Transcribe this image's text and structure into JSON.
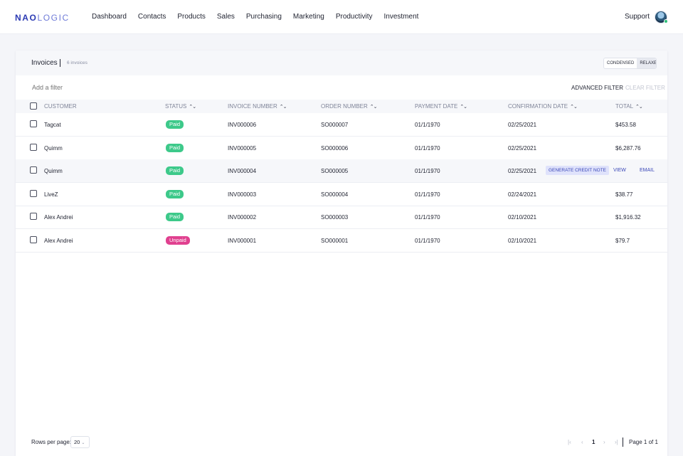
{
  "nav": {
    "logo_part1": "NAO",
    "logo_part2": "LOGIC",
    "items": [
      "Dashboard",
      "Contacts",
      "Products",
      "Sales",
      "Purchasing",
      "Marketing",
      "Productivity",
      "Investment"
    ],
    "support": "Support"
  },
  "card": {
    "title": "Invoices",
    "count": "6 invoices",
    "density": {
      "condensed": "CONDENSED",
      "relaxed": "RELAXED",
      "active": "relaxed"
    }
  },
  "filter": {
    "placeholder": "Add a filter",
    "advanced": "ADVANCED FILTER",
    "clear": "CLEAR FILTER"
  },
  "table": {
    "headers": {
      "customer": "CUSTOMER",
      "status": "STATUS",
      "invoice": "INVOICE NUMBER",
      "order": "ORDER NUMBER",
      "payment": "PAYMENT DATE",
      "confirmation": "CONFIRMATION DATE",
      "total": "TOTAL"
    },
    "rows": [
      {
        "customer": "Tagcat",
        "status": "Paid",
        "invoice": "INV000006",
        "order": "SO000007",
        "payment": "01/1/1970",
        "confirmation": "02/25/2021",
        "total": "$453.58"
      },
      {
        "customer": "Quimm",
        "status": "Paid",
        "invoice": "INV000005",
        "order": "SO000006",
        "payment": "01/1/1970",
        "confirmation": "02/25/2021",
        "total": "$6,287.76"
      },
      {
        "customer": "Quimm",
        "status": "Paid",
        "invoice": "INV000004",
        "order": "SO000005",
        "payment": "01/1/1970",
        "confirmation": "02/25/2021",
        "total": ""
      },
      {
        "customer": "LiveZ",
        "status": "Paid",
        "invoice": "INV000003",
        "order": "SO000004",
        "payment": "01/1/1970",
        "confirmation": "02/24/2021",
        "total": "$38.77"
      },
      {
        "customer": "Alex Andrei",
        "status": "Paid",
        "invoice": "INV000002",
        "order": "SO000003",
        "payment": "01/1/1970",
        "confirmation": "02/10/2021",
        "total": "$1,916.32"
      },
      {
        "customer": "Alex Andrei",
        "status": "Unpaid",
        "invoice": "INV000001",
        "order": "SO000001",
        "payment": "01/1/1970",
        "confirmation": "02/10/2021",
        "total": "$79.7"
      }
    ],
    "hover_actions": {
      "credit": "GENERATE CREDIT NOTE",
      "view": "VIEW",
      "email": "EMAIL"
    }
  },
  "footer": {
    "rows_label": "Rows per page:",
    "rows_value": "20",
    "current_page": "1",
    "page_info": "Page 1 of 1"
  },
  "colors": {
    "brand": "#2c3bb3",
    "paid": "#3dc98a",
    "unpaid": "#e0408f",
    "action": "#3b48b8"
  }
}
